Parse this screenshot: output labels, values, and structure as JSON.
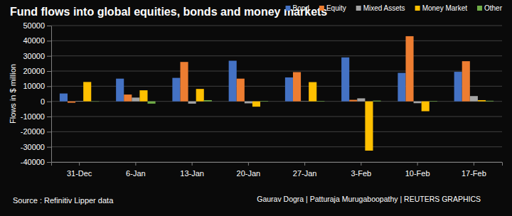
{
  "chart_data": {
    "type": "bar",
    "title": "Fund flows into global equities, bonds and money markets",
    "y_label": "Flows in $ million",
    "source": "Source : Refinitiv Lipper data",
    "credit": "Gaurav Dogra | Patturaja Murugaboopathy | REUTERS GRAPHICS",
    "categories": [
      "31-Dec",
      "6-Jan",
      "13-Jan",
      "20-Jan",
      "27-Jan",
      "3-Feb",
      "10-Feb",
      "17-Feb"
    ],
    "series": [
      {
        "name": "Bond",
        "color": "#4472c4",
        "values": [
          5200,
          15000,
          15500,
          26800,
          15800,
          29000,
          18800,
          19500
        ]
      },
      {
        "name": "Equity",
        "color": "#ed7d31",
        "values": [
          -900,
          4500,
          26000,
          15000,
          19300,
          1000,
          43000,
          26500
        ]
      },
      {
        "name": "Mixed Assets",
        "color": "#a5a5a5",
        "values": [
          300,
          2500,
          -1500,
          -1300,
          200,
          2000,
          -1200,
          3500
        ]
      },
      {
        "name": "Money Market",
        "color": "#ffc000",
        "values": [
          12800,
          7300,
          8200,
          -3500,
          12700,
          -32500,
          -6500,
          800
        ]
      },
      {
        "name": "Other",
        "color": "#70ad47",
        "values": [
          -200,
          -1500,
          800,
          300,
          300,
          500,
          300,
          400
        ]
      }
    ],
    "ylim": [
      -40000,
      50000
    ],
    "yticks": [
      -40000,
      -30000,
      -20000,
      -10000,
      0,
      10000,
      20000,
      30000,
      40000,
      50000
    ],
    "grid": true,
    "legend": "top-right"
  }
}
